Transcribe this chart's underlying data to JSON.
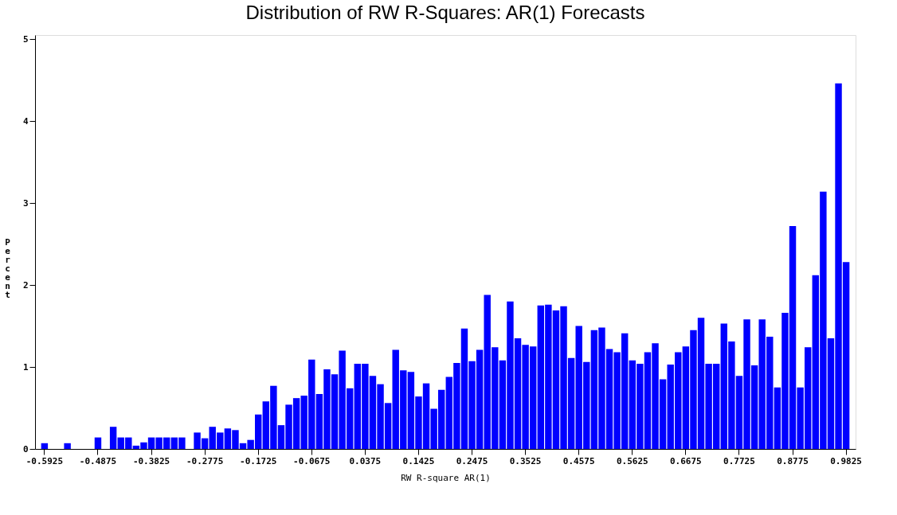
{
  "chart_data": {
    "type": "bar",
    "title": "Distribution of RW R-Squares: AR(1) Forecasts",
    "xlabel": "RW R-square AR(1)",
    "ylabel": "Percent",
    "color": "#0000ff",
    "categories": [
      "-0.5925",
      null,
      null,
      null,
      null,
      null,
      null,
      "-0.4875",
      null,
      null,
      null,
      null,
      null,
      null,
      "-0.3825",
      null,
      null,
      null,
      null,
      null,
      null,
      "-0.2775",
      null,
      null,
      null,
      null,
      null,
      null,
      "-0.1725",
      null,
      null,
      null,
      null,
      null,
      null,
      "-0.0675",
      null,
      null,
      null,
      null,
      null,
      null,
      "0.0375",
      null,
      null,
      null,
      null,
      null,
      null,
      "0.1425",
      null,
      null,
      null,
      null,
      null,
      null,
      "0.2475",
      null,
      null,
      null,
      null,
      null,
      null,
      "0.3525",
      null,
      null,
      null,
      null,
      null,
      null,
      "0.4575",
      null,
      null,
      null,
      null,
      null,
      null,
      "0.5625",
      null,
      null,
      null,
      null,
      null,
      null,
      "0.6675",
      null,
      null,
      null,
      null,
      null,
      null,
      "0.7725",
      null,
      null,
      null,
      null,
      null,
      null,
      "0.8775",
      null,
      null,
      null,
      null,
      null,
      null,
      "0.9825"
    ],
    "values": [
      0.07,
      0,
      0,
      0.07,
      0,
      0,
      0,
      0.14,
      0,
      0.27,
      0.14,
      0.14,
      0.04,
      0.08,
      0.14,
      0.14,
      0.14,
      0.14,
      0.14,
      0,
      0.2,
      0.13,
      0.27,
      0.2,
      0.25,
      0.23,
      0.07,
      0.11,
      0.42,
      0.58,
      0.77,
      0.29,
      0.54,
      0.62,
      0.65,
      1.09,
      0.67,
      0.97,
      0.91,
      1.2,
      0.74,
      1.04,
      1.04,
      0.89,
      0.79,
      0.56,
      1.21,
      0.96,
      0.94,
      0.64,
      0.8,
      0.49,
      0.72,
      0.88,
      1.05,
      1.47,
      1.07,
      1.21,
      1.88,
      1.24,
      1.08,
      1.8,
      1.35,
      1.27,
      1.25,
      1.75,
      1.76,
      1.69,
      1.74,
      1.11,
      1.5,
      1.06,
      1.45,
      1.48,
      1.22,
      1.18,
      1.41,
      1.08,
      1.04,
      1.18,
      1.29,
      0.85,
      1.03,
      1.18,
      1.25,
      1.45,
      1.6,
      1.04,
      1.04,
      1.53,
      1.31,
      0.89,
      1.58,
      1.02,
      1.58,
      1.37,
      0.75,
      1.66,
      2.72,
      0.75,
      1.24,
      2.12,
      3.14,
      1.35,
      4.46,
      2.28
    ],
    "ylim": [
      0,
      5.05
    ],
    "yticks": [
      0,
      1,
      2,
      3,
      4,
      5
    ],
    "grid": false
  }
}
